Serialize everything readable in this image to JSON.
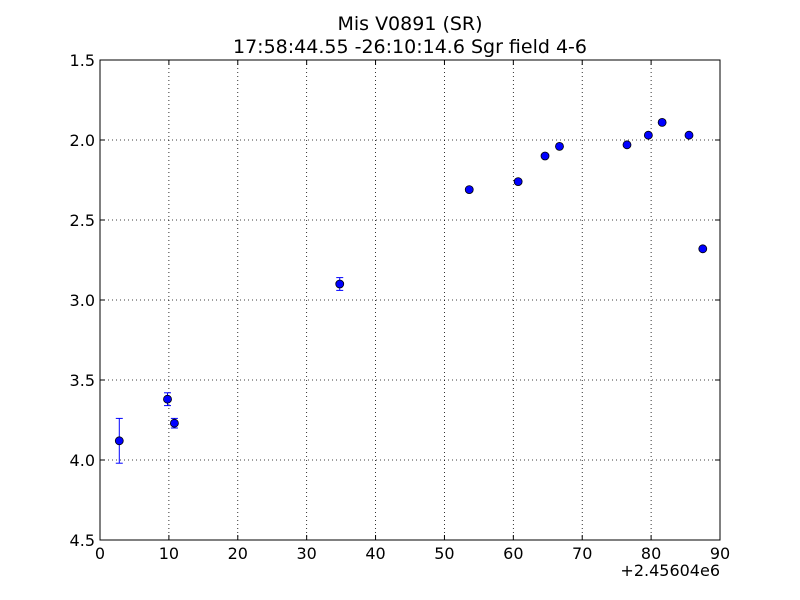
{
  "chart_data": {
    "type": "scatter",
    "title": "Mis V0891 (SR)",
    "subtitle": "17:58:44.55 -26:10:14.6 Sgr field 4-6",
    "xlabel": "",
    "ylabel": "",
    "x_offset_label": "+2.45604e6",
    "xlim": [
      0,
      90
    ],
    "ylim": [
      4.5,
      1.5
    ],
    "y_inverted": true,
    "grid": true,
    "x_ticks": [
      "0",
      "10",
      "20",
      "30",
      "40",
      "50",
      "60",
      "70",
      "80",
      "90"
    ],
    "y_ticks": [
      "1.5",
      "2.0",
      "2.5",
      "3.0",
      "3.5",
      "4.0",
      "4.5"
    ],
    "marker_color": "#0000ff",
    "points": [
      {
        "x": 2.8,
        "y": 3.88,
        "err": 0.14
      },
      {
        "x": 9.8,
        "y": 3.62,
        "err": 0.04
      },
      {
        "x": 10.8,
        "y": 3.77,
        "err": 0.03
      },
      {
        "x": 34.8,
        "y": 2.9,
        "err": 0.04
      },
      {
        "x": 53.6,
        "y": 2.31,
        "err": 0.01
      },
      {
        "x": 60.7,
        "y": 2.26,
        "err": 0.01
      },
      {
        "x": 64.6,
        "y": 2.1,
        "err": 0.01
      },
      {
        "x": 66.7,
        "y": 2.04,
        "err": 0.01
      },
      {
        "x": 76.5,
        "y": 2.03,
        "err": 0.01
      },
      {
        "x": 79.6,
        "y": 1.97,
        "err": 0.01
      },
      {
        "x": 81.6,
        "y": 1.89,
        "err": 0.01
      },
      {
        "x": 85.5,
        "y": 1.97,
        "err": 0.01
      },
      {
        "x": 87.5,
        "y": 2.68,
        "err": 0.01
      }
    ]
  }
}
